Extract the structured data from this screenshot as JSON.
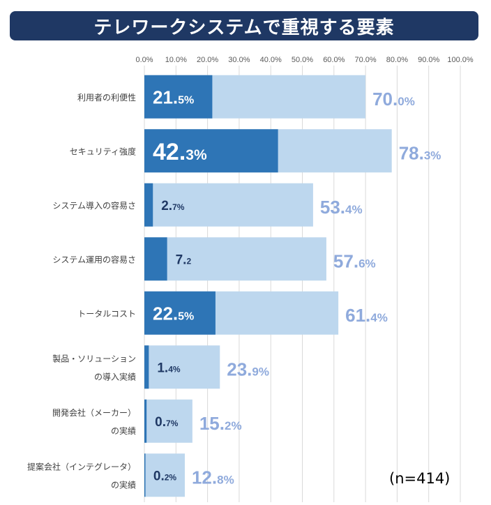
{
  "title": "テレワークシステムで重視する要素",
  "sample_note": "(n=414)",
  "colors": {
    "title_bg": "#1f3864",
    "dark_bar": "#2e75b6",
    "light_bar": "#bdd7ee",
    "dark_label": "#1f3864",
    "light_label": "#8faadc",
    "grid": "#d9d9d9"
  },
  "chart_data": {
    "type": "bar",
    "orientation": "horizontal",
    "xlim": [
      0,
      100
    ],
    "x_ticks": [
      "0.0%",
      "10.0%",
      "20.0%",
      "30.0%",
      "40.0%",
      "50.0%",
      "60.0%",
      "70.0%",
      "80.0%",
      "90.0%",
      "100.0%"
    ],
    "categories": [
      [
        "利用者の利便性"
      ],
      [
        "セキュリティ強度"
      ],
      [
        "システム導入の容易さ"
      ],
      [
        "システム運用の容易さ"
      ],
      [
        "トータルコスト"
      ],
      [
        "製品・ソリューション",
        "の導入実績"
      ],
      [
        "開発会社（メーカー）",
        "の実績"
      ],
      [
        "提案会社（インテグレータ）",
        "の実績"
      ]
    ],
    "series": [
      {
        "values": [
          21.5,
          42.3,
          2.7,
          7.2,
          22.5,
          1.4,
          0.7,
          0.2
        ],
        "labels": [
          [
            "21.",
            "5%"
          ],
          [
            "42.",
            "3%"
          ],
          [
            "2.",
            "7%"
          ],
          [
            "7.",
            "2"
          ],
          [
            "22.",
            "5%"
          ],
          [
            "1.",
            "4%"
          ],
          [
            "0.",
            "7%"
          ],
          [
            "0.",
            "2%"
          ]
        ]
      },
      {
        "values": [
          70.0,
          78.3,
          53.4,
          57.6,
          61.4,
          23.9,
          15.2,
          12.8
        ],
        "labels": [
          [
            "70.",
            "0%"
          ],
          [
            "78.",
            "3%"
          ],
          [
            "53.",
            "4%"
          ],
          [
            "57.",
            "6%"
          ],
          [
            "61.",
            "4%"
          ],
          [
            "23.",
            "9%"
          ],
          [
            "15.",
            "2%"
          ],
          [
            "12.",
            "8%"
          ]
        ]
      }
    ]
  }
}
